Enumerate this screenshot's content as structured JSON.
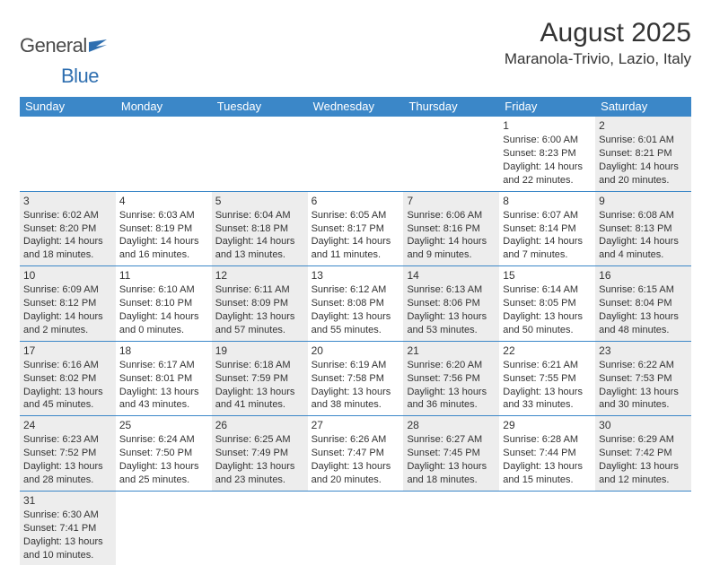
{
  "logo": {
    "text1": "General",
    "text2": "Blue"
  },
  "header": {
    "month_title": "August 2025",
    "location": "Maranola-Trivio, Lazio, Italy"
  },
  "colors": {
    "header_bar": "#3b87c8",
    "shaded_cell": "#ededed",
    "rule": "#3b87c8",
    "text": "#333333",
    "logo_blue": "#2f6fb0"
  },
  "weekdays": [
    "Sunday",
    "Monday",
    "Tuesday",
    "Wednesday",
    "Thursday",
    "Friday",
    "Saturday"
  ],
  "weeks": [
    [
      {
        "empty": true
      },
      {
        "empty": true
      },
      {
        "empty": true
      },
      {
        "empty": true
      },
      {
        "empty": true
      },
      {
        "num": "1",
        "shaded": false,
        "sunrise": "Sunrise: 6:00 AM",
        "sunset": "Sunset: 8:23 PM",
        "day1": "Daylight: 14 hours",
        "day2": "and 22 minutes."
      },
      {
        "num": "2",
        "shaded": true,
        "sunrise": "Sunrise: 6:01 AM",
        "sunset": "Sunset: 8:21 PM",
        "day1": "Daylight: 14 hours",
        "day2": "and 20 minutes."
      }
    ],
    [
      {
        "num": "3",
        "shaded": true,
        "sunrise": "Sunrise: 6:02 AM",
        "sunset": "Sunset: 8:20 PM",
        "day1": "Daylight: 14 hours",
        "day2": "and 18 minutes."
      },
      {
        "num": "4",
        "shaded": false,
        "sunrise": "Sunrise: 6:03 AM",
        "sunset": "Sunset: 8:19 PM",
        "day1": "Daylight: 14 hours",
        "day2": "and 16 minutes."
      },
      {
        "num": "5",
        "shaded": true,
        "sunrise": "Sunrise: 6:04 AM",
        "sunset": "Sunset: 8:18 PM",
        "day1": "Daylight: 14 hours",
        "day2": "and 13 minutes."
      },
      {
        "num": "6",
        "shaded": false,
        "sunrise": "Sunrise: 6:05 AM",
        "sunset": "Sunset: 8:17 PM",
        "day1": "Daylight: 14 hours",
        "day2": "and 11 minutes."
      },
      {
        "num": "7",
        "shaded": true,
        "sunrise": "Sunrise: 6:06 AM",
        "sunset": "Sunset: 8:16 PM",
        "day1": "Daylight: 14 hours",
        "day2": "and 9 minutes."
      },
      {
        "num": "8",
        "shaded": false,
        "sunrise": "Sunrise: 6:07 AM",
        "sunset": "Sunset: 8:14 PM",
        "day1": "Daylight: 14 hours",
        "day2": "and 7 minutes."
      },
      {
        "num": "9",
        "shaded": true,
        "sunrise": "Sunrise: 6:08 AM",
        "sunset": "Sunset: 8:13 PM",
        "day1": "Daylight: 14 hours",
        "day2": "and 4 minutes."
      }
    ],
    [
      {
        "num": "10",
        "shaded": true,
        "sunrise": "Sunrise: 6:09 AM",
        "sunset": "Sunset: 8:12 PM",
        "day1": "Daylight: 14 hours",
        "day2": "and 2 minutes."
      },
      {
        "num": "11",
        "shaded": false,
        "sunrise": "Sunrise: 6:10 AM",
        "sunset": "Sunset: 8:10 PM",
        "day1": "Daylight: 14 hours",
        "day2": "and 0 minutes."
      },
      {
        "num": "12",
        "shaded": true,
        "sunrise": "Sunrise: 6:11 AM",
        "sunset": "Sunset: 8:09 PM",
        "day1": "Daylight: 13 hours",
        "day2": "and 57 minutes."
      },
      {
        "num": "13",
        "shaded": false,
        "sunrise": "Sunrise: 6:12 AM",
        "sunset": "Sunset: 8:08 PM",
        "day1": "Daylight: 13 hours",
        "day2": "and 55 minutes."
      },
      {
        "num": "14",
        "shaded": true,
        "sunrise": "Sunrise: 6:13 AM",
        "sunset": "Sunset: 8:06 PM",
        "day1": "Daylight: 13 hours",
        "day2": "and 53 minutes."
      },
      {
        "num": "15",
        "shaded": false,
        "sunrise": "Sunrise: 6:14 AM",
        "sunset": "Sunset: 8:05 PM",
        "day1": "Daylight: 13 hours",
        "day2": "and 50 minutes."
      },
      {
        "num": "16",
        "shaded": true,
        "sunrise": "Sunrise: 6:15 AM",
        "sunset": "Sunset: 8:04 PM",
        "day1": "Daylight: 13 hours",
        "day2": "and 48 minutes."
      }
    ],
    [
      {
        "num": "17",
        "shaded": true,
        "sunrise": "Sunrise: 6:16 AM",
        "sunset": "Sunset: 8:02 PM",
        "day1": "Daylight: 13 hours",
        "day2": "and 45 minutes."
      },
      {
        "num": "18",
        "shaded": false,
        "sunrise": "Sunrise: 6:17 AM",
        "sunset": "Sunset: 8:01 PM",
        "day1": "Daylight: 13 hours",
        "day2": "and 43 minutes."
      },
      {
        "num": "19",
        "shaded": true,
        "sunrise": "Sunrise: 6:18 AM",
        "sunset": "Sunset: 7:59 PM",
        "day1": "Daylight: 13 hours",
        "day2": "and 41 minutes."
      },
      {
        "num": "20",
        "shaded": false,
        "sunrise": "Sunrise: 6:19 AM",
        "sunset": "Sunset: 7:58 PM",
        "day1": "Daylight: 13 hours",
        "day2": "and 38 minutes."
      },
      {
        "num": "21",
        "shaded": true,
        "sunrise": "Sunrise: 6:20 AM",
        "sunset": "Sunset: 7:56 PM",
        "day1": "Daylight: 13 hours",
        "day2": "and 36 minutes."
      },
      {
        "num": "22",
        "shaded": false,
        "sunrise": "Sunrise: 6:21 AM",
        "sunset": "Sunset: 7:55 PM",
        "day1": "Daylight: 13 hours",
        "day2": "and 33 minutes."
      },
      {
        "num": "23",
        "shaded": true,
        "sunrise": "Sunrise: 6:22 AM",
        "sunset": "Sunset: 7:53 PM",
        "day1": "Daylight: 13 hours",
        "day2": "and 30 minutes."
      }
    ],
    [
      {
        "num": "24",
        "shaded": true,
        "sunrise": "Sunrise: 6:23 AM",
        "sunset": "Sunset: 7:52 PM",
        "day1": "Daylight: 13 hours",
        "day2": "and 28 minutes."
      },
      {
        "num": "25",
        "shaded": false,
        "sunrise": "Sunrise: 6:24 AM",
        "sunset": "Sunset: 7:50 PM",
        "day1": "Daylight: 13 hours",
        "day2": "and 25 minutes."
      },
      {
        "num": "26",
        "shaded": true,
        "sunrise": "Sunrise: 6:25 AM",
        "sunset": "Sunset: 7:49 PM",
        "day1": "Daylight: 13 hours",
        "day2": "and 23 minutes."
      },
      {
        "num": "27",
        "shaded": false,
        "sunrise": "Sunrise: 6:26 AM",
        "sunset": "Sunset: 7:47 PM",
        "day1": "Daylight: 13 hours",
        "day2": "and 20 minutes."
      },
      {
        "num": "28",
        "shaded": true,
        "sunrise": "Sunrise: 6:27 AM",
        "sunset": "Sunset: 7:45 PM",
        "day1": "Daylight: 13 hours",
        "day2": "and 18 minutes."
      },
      {
        "num": "29",
        "shaded": false,
        "sunrise": "Sunrise: 6:28 AM",
        "sunset": "Sunset: 7:44 PM",
        "day1": "Daylight: 13 hours",
        "day2": "and 15 minutes."
      },
      {
        "num": "30",
        "shaded": true,
        "sunrise": "Sunrise: 6:29 AM",
        "sunset": "Sunset: 7:42 PM",
        "day1": "Daylight: 13 hours",
        "day2": "and 12 minutes."
      }
    ],
    [
      {
        "num": "31",
        "shaded": true,
        "sunrise": "Sunrise: 6:30 AM",
        "sunset": "Sunset: 7:41 PM",
        "day1": "Daylight: 13 hours",
        "day2": "and 10 minutes."
      },
      {
        "empty": true
      },
      {
        "empty": true
      },
      {
        "empty": true
      },
      {
        "empty": true
      },
      {
        "empty": true
      },
      {
        "empty": true
      }
    ]
  ]
}
